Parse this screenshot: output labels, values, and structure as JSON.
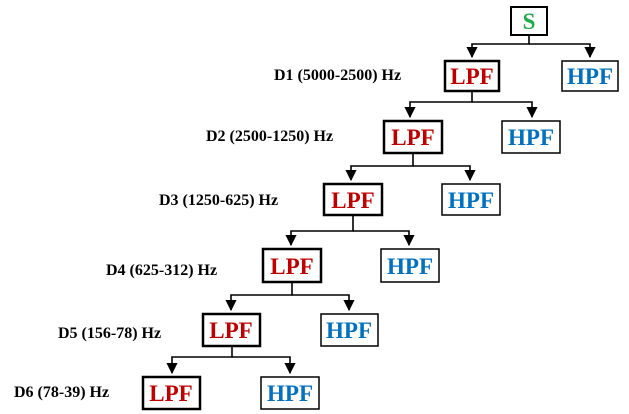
{
  "root": {
    "label": "S",
    "color": "#1faa4b"
  },
  "colors": {
    "lpf": "#c00000",
    "hpf": "#0070c0"
  },
  "levels": [
    {
      "label": "D1 (5000-2500) Hz",
      "lpf": "LPF",
      "hpf": "HPF"
    },
    {
      "label": "D2 (2500-1250) Hz",
      "lpf": "LPF",
      "hpf": "HPF"
    },
    {
      "label": "D3 (1250-625) Hz",
      "lpf": "LPF",
      "hpf": "HPF"
    },
    {
      "label": "D4 (625-312) Hz",
      "lpf": "LPF",
      "hpf": "HPF"
    },
    {
      "label": "D5 (156-78) Hz",
      "lpf": "LPF",
      "hpf": "HPF"
    },
    {
      "label": "D6 (78-39) Hz",
      "lpf": "LPF",
      "hpf": "HPF"
    }
  ]
}
